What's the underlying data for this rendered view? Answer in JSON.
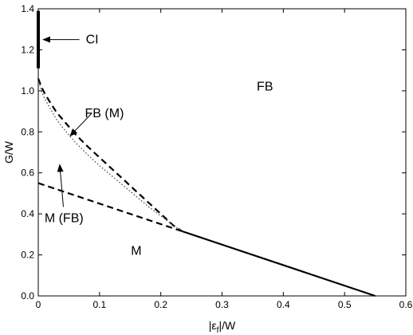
{
  "chart_data": {
    "type": "line",
    "xlabel_main": "|ε",
    "xlabel_sub": "f",
    "xlabel_tail": "|/W",
    "ylabel": "G/W",
    "xlim": [
      0,
      0.6
    ],
    "ylim": [
      0,
      1.4
    ],
    "xticks": [
      0,
      0.1,
      0.2,
      0.3,
      0.4,
      0.5,
      0.6
    ],
    "xtick_labels": [
      "0",
      "0.1",
      "0.2",
      "0.3",
      "0.4",
      "0.5",
      "0.6"
    ],
    "yticks": [
      0,
      0.2,
      0.4,
      0.6,
      0.8,
      1.0,
      1.2,
      1.4
    ],
    "ytick_labels": [
      "0.0",
      "0.2",
      "0.4",
      "0.6",
      "0.8",
      "1.0",
      "1.2",
      "1.4"
    ],
    "grid": false,
    "series": [
      {
        "style": "solid",
        "width": "thick",
        "color": "#000000",
        "x": [
          0,
          0
        ],
        "y": [
          1.11,
          1.39
        ]
      },
      {
        "style": "solid",
        "color": "#000000",
        "x": [
          0.235,
          0.55
        ],
        "y": [
          0.315,
          0.0
        ]
      },
      {
        "style": "dashed",
        "color": "#000000",
        "x": [
          0.0,
          0.235
        ],
        "y": [
          0.55,
          0.315
        ]
      },
      {
        "style": "dashed",
        "color": "#000000",
        "x": [
          0.0,
          0.005,
          0.01,
          0.02,
          0.03,
          0.04,
          0.05,
          0.06,
          0.08,
          0.1,
          0.12,
          0.14,
          0.16,
          0.18,
          0.2,
          0.22,
          0.235
        ],
        "y": [
          1.06,
          1.02,
          0.99,
          0.94,
          0.895,
          0.86,
          0.825,
          0.79,
          0.73,
          0.675,
          0.62,
          0.565,
          0.51,
          0.455,
          0.4,
          0.345,
          0.315
        ]
      },
      {
        "style": "dotted",
        "color": "#555555",
        "x": [
          0.0,
          0.005,
          0.01,
          0.02,
          0.03,
          0.04,
          0.05,
          0.06,
          0.08,
          0.1,
          0.12,
          0.14,
          0.16,
          0.18,
          0.2,
          0.22,
          0.235
        ],
        "y": [
          1.06,
          1.0,
          0.965,
          0.91,
          0.86,
          0.82,
          0.785,
          0.75,
          0.69,
          0.635,
          0.585,
          0.535,
          0.485,
          0.435,
          0.39,
          0.345,
          0.315
        ]
      }
    ],
    "annotations": [
      {
        "text": "CI",
        "x": 0.088,
        "y": 1.25,
        "arrow_to": [
          0.008,
          1.25
        ]
      },
      {
        "text": "FB (M)",
        "x": 0.108,
        "y": 0.89,
        "arrow_to": [
          0.052,
          0.78
        ]
      },
      {
        "text": "M (FB)",
        "x": 0.042,
        "y": 0.38,
        "arrow_to": [
          0.035,
          0.64
        ]
      },
      {
        "text": "FB",
        "x": 0.37,
        "y": 1.02
      },
      {
        "text": "M",
        "x": 0.16,
        "y": 0.22
      }
    ]
  }
}
